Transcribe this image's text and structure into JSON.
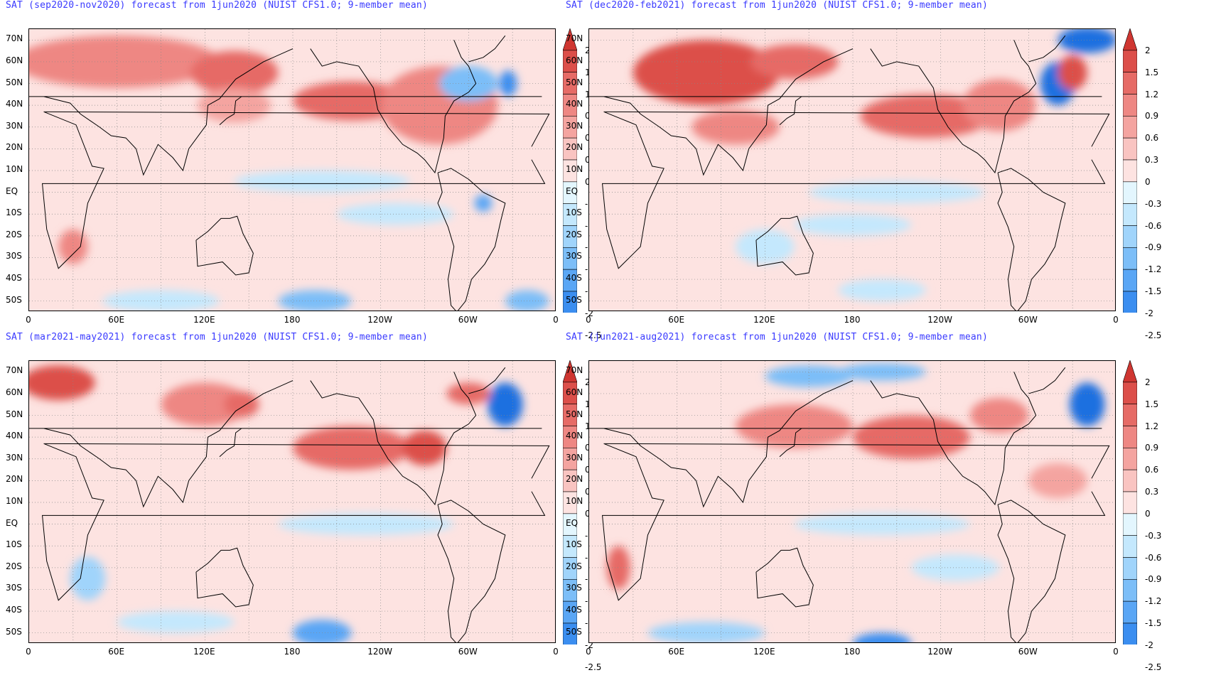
{
  "colors": {
    "title": "#3a3aff",
    "levels": [
      "#1f6fe0",
      "#3b8ef0",
      "#5aa6f5",
      "#7cbef8",
      "#a0d4fb",
      "#c4e8fd",
      "#e3f6fe",
      "#fde3e1",
      "#f9c4c1",
      "#f4a4a0",
      "#ee8783",
      "#e66b66",
      "#dc4f4a",
      "#cf3631"
    ]
  },
  "y_axis_labels": [
    "70N",
    "60N",
    "50N",
    "40N",
    "30N",
    "20N",
    "10N",
    "EQ",
    "10S",
    "20S",
    "30S",
    "40S",
    "50S"
  ],
  "x_axis_labels": [
    "0",
    "60E",
    "120E",
    "180",
    "120W",
    "60W",
    "0"
  ],
  "colorbar_labels": [
    "2",
    "1.5",
    "1.2",
    "0.9",
    "0.6",
    "0.3",
    "0",
    "-0.3",
    "-0.6",
    "-0.9",
    "-1.2",
    "-1.5",
    "-2",
    "-2.5"
  ],
  "panels": [
    {
      "title": "SAT (sep2020-nov2020) forecast from 1jun2020 (NUIST CFS1.0; 9-member mean)"
    },
    {
      "title": "SAT (dec2020-feb2021) forecast from 1jun2020 (NUIST CFS1.0; 9-member mean)"
    },
    {
      "title": "SAT (mar2021-may2021) forecast from 1jun2020 (NUIST CFS1.0; 9-member mean)"
    },
    {
      "title": "SAT (jun2021-aug2021) forecast from 1jun2020 (NUIST CFS1.0; 9-member mean)"
    }
  ]
}
